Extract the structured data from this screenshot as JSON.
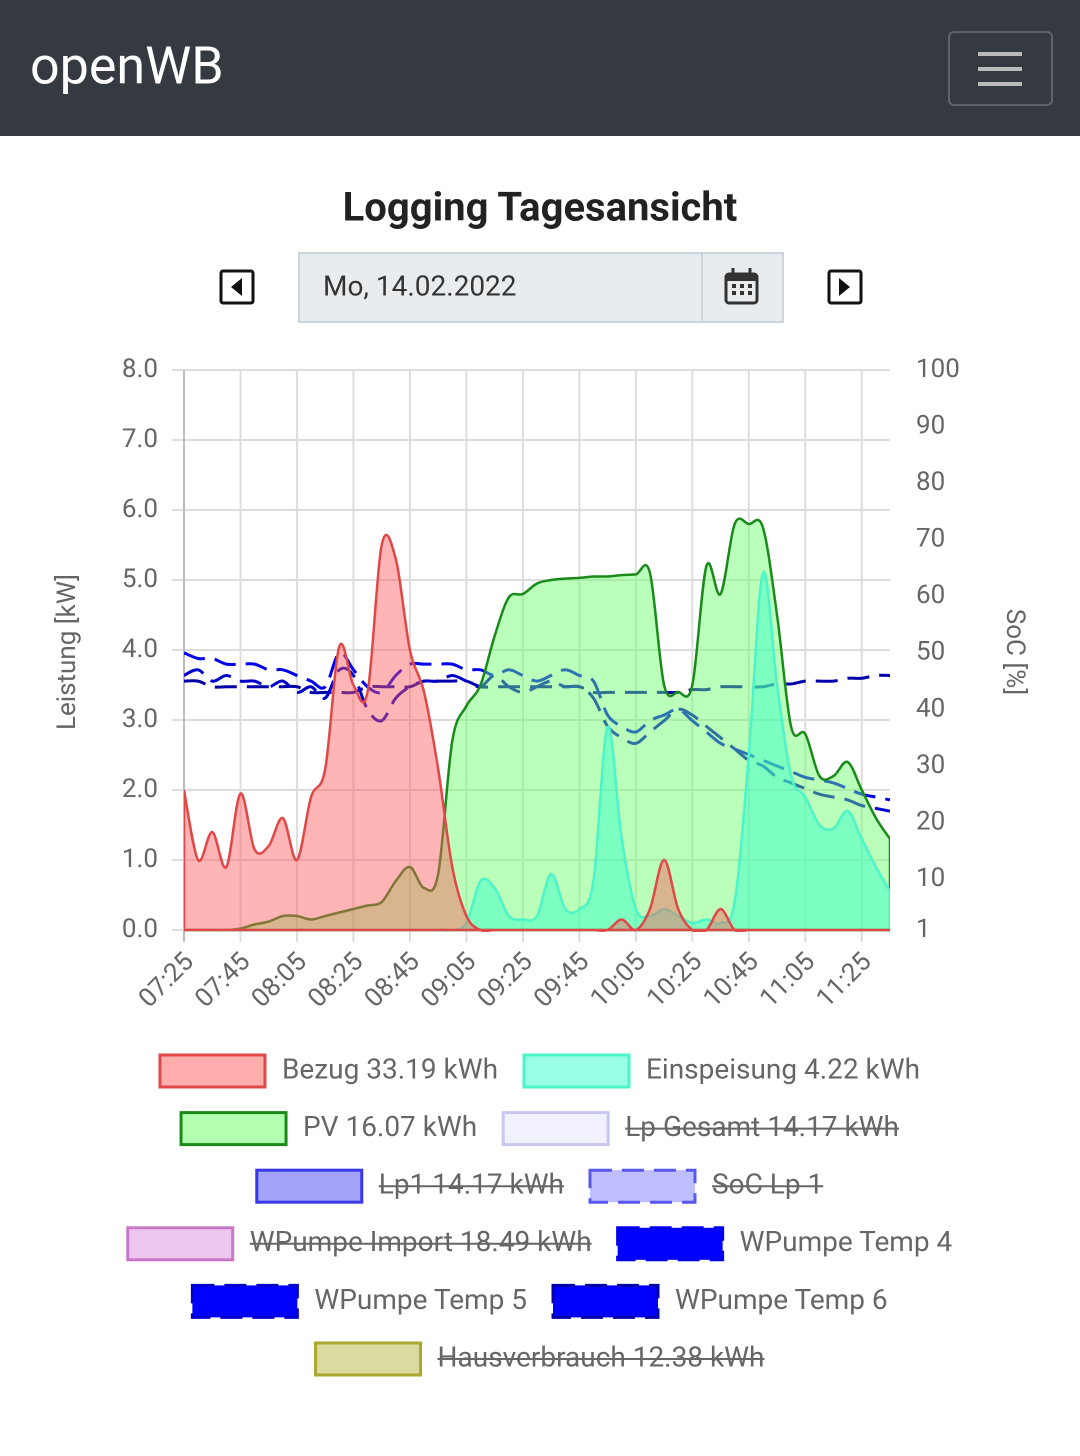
{
  "header": {
    "title": "openWB"
  },
  "date_picker": {
    "value": "Mo, 14.02.2022"
  },
  "chart_data": {
    "type": "area",
    "title": "Logging Tagesansicht",
    "y_label": "Leistung [kW]",
    "y2_label": "SoC [%]",
    "categories": [
      "07:25",
      null,
      null,
      null,
      "07:45",
      null,
      null,
      null,
      "08:05",
      null,
      null,
      null,
      "08:25",
      null,
      null,
      null,
      "08:45",
      null,
      null,
      null,
      "09:05",
      null,
      null,
      null,
      "09:25",
      null,
      null,
      null,
      "09:45",
      null,
      null,
      null,
      "10:05",
      null,
      null,
      null,
      "10:25",
      null,
      null,
      null,
      "10:45",
      null,
      null,
      null,
      "11:05",
      null,
      null,
      null,
      "11:25",
      null,
      null
    ],
    "ylim": [
      0,
      8
    ],
    "yticks": [
      {
        "value": 0,
        "label": "0.0"
      },
      {
        "value": 1,
        "label": "1.0"
      },
      {
        "value": 2,
        "label": "2.0"
      },
      {
        "value": 3,
        "label": "3.0"
      },
      {
        "value": 4,
        "label": "4.0"
      },
      {
        "value": 5,
        "label": "5.0"
      },
      {
        "value": 6,
        "label": "6.0"
      },
      {
        "value": 7,
        "label": "7.0"
      },
      {
        "value": 8,
        "label": "8.0"
      }
    ],
    "y2lim": [
      1,
      100
    ],
    "y2ticks": [
      1,
      10,
      20,
      30,
      40,
      50,
      60,
      70,
      80,
      90,
      100
    ],
    "grid": true,
    "series": [
      {
        "name": "Bezug 33.19 kWh",
        "color": "#e04848",
        "fill": "#ff5c5c",
        "values": [
          2.0,
          1.0,
          1.4,
          0.9,
          1.95,
          1.15,
          1.2,
          1.6,
          1.0,
          1.9,
          2.3,
          4.05,
          3.5,
          3.4,
          5.5,
          5.3,
          4.0,
          3.4,
          2.3,
          0.9,
          0.2,
          0,
          0,
          0,
          0,
          0,
          0,
          0,
          0,
          0,
          0,
          0.15,
          0,
          0.3,
          1.0,
          0.3,
          0,
          0,
          0.3,
          0,
          0,
          0,
          0,
          0,
          0,
          0,
          0,
          0,
          0,
          0,
          0
        ]
      },
      {
        "name": "Einspeisung 4.22 kWh",
        "color": "#4cf5c8",
        "fill": "#33ffcc",
        "values": [
          0,
          0,
          0,
          0,
          0,
          0,
          0,
          0,
          0,
          0,
          0,
          0,
          0,
          0,
          0,
          0,
          0,
          0,
          0,
          0,
          0.1,
          0.7,
          0.6,
          0.2,
          0.15,
          0.2,
          0.8,
          0.3,
          0.3,
          0.7,
          2.9,
          1.3,
          0.3,
          0.2,
          0.3,
          0.2,
          0.1,
          0.15,
          0.1,
          0.4,
          2.5,
          5.1,
          3.5,
          2.2,
          1.9,
          1.5,
          1.45,
          1.7,
          1.3,
          0.9,
          0.55
        ]
      },
      {
        "name": "PV 16.07 kWh",
        "color": "#1a8a1a",
        "fill": "#66ff66",
        "values": [
          0,
          0,
          0,
          0,
          0.02,
          0.08,
          0.12,
          0.2,
          0.2,
          0.15,
          0.2,
          0.25,
          0.3,
          0.35,
          0.4,
          0.7,
          0.9,
          0.6,
          0.8,
          2.7,
          3.2,
          3.5,
          4.2,
          4.75,
          4.8,
          4.95,
          5.0,
          5.02,
          5.03,
          5.05,
          5.05,
          5.07,
          5.08,
          5.1,
          3.5,
          3.4,
          3.5,
          5.2,
          4.8,
          5.8,
          5.8,
          5.75,
          4.5,
          2.9,
          2.8,
          2.2,
          2.2,
          2.4,
          2.0,
          1.6,
          1.3
        ]
      },
      {
        "name": "Lp Gesamt 14.17 kWh",
        "color": "#c8c8f0",
        "fill": "#e4e4ff",
        "hidden": true
      },
      {
        "name": "Lp1 14.17 kWh",
        "color": "#3838e8",
        "fill": "#4848f0",
        "hidden": true
      },
      {
        "name": "SoC Lp 1",
        "color": "#5858f0",
        "fill": "#8080ff",
        "dashed": true,
        "hidden": true
      },
      {
        "name": "WPumpe Import 18.49 kWh",
        "color": "#c878c8",
        "fill": "#dd90dd",
        "hidden": true
      },
      {
        "name": "WPumpe Temp 4",
        "color": "#0000ee",
        "fill": "#0000ff",
        "dashed": true,
        "axis": "y2",
        "values": [
          50,
          49,
          49,
          48,
          48,
          48,
          47,
          47,
          46,
          45,
          44,
          50,
          47,
          44,
          43,
          46,
          48,
          48,
          48,
          48,
          47,
          47,
          46,
          47,
          46,
          45,
          46,
          47,
          46,
          45,
          39,
          37,
          36,
          38,
          39,
          40,
          38,
          36,
          34,
          33,
          32,
          31,
          30,
          29,
          28,
          27.5,
          27,
          26,
          25,
          24.5,
          24
        ]
      },
      {
        "name": "WPumpe Temp 5",
        "color": "#0000cc",
        "fill": "#0000ff",
        "dashed": true,
        "axis": "y2",
        "values": [
          46,
          47,
          45,
          46,
          45,
          45,
          44,
          45,
          43,
          44,
          42,
          47,
          46,
          40,
          38,
          42,
          44,
          45,
          45,
          46,
          45,
          44,
          46,
          44,
          43,
          44,
          45,
          44,
          44,
          42,
          37,
          35,
          34,
          36,
          38,
          40,
          39,
          37,
          35,
          33,
          31,
          30,
          28,
          27,
          26,
          25,
          24.5,
          24,
          23,
          22.5,
          22
        ]
      },
      {
        "name": "WPumpe Temp 6",
        "color": "#0000aa",
        "fill": "#0000ff",
        "dashed": true,
        "axis": "y2",
        "values": [
          45,
          45,
          44,
          44,
          44,
          44,
          44,
          44,
          44,
          43,
          43,
          43,
          43,
          44,
          44,
          44,
          44,
          45,
          45,
          45,
          45,
          44,
          44,
          44,
          44,
          44,
          44,
          44,
          44,
          43,
          43,
          43,
          43,
          43,
          43,
          43,
          43.5,
          43.5,
          44,
          44,
          44,
          44,
          44.5,
          44.5,
          45,
          45,
          45,
          45.5,
          45.5,
          46,
          46
        ]
      },
      {
        "name": "Hausverbrauch 12.38 kWh",
        "color": "#a8a830",
        "fill": "#b8b840",
        "hidden": true
      }
    ]
  }
}
